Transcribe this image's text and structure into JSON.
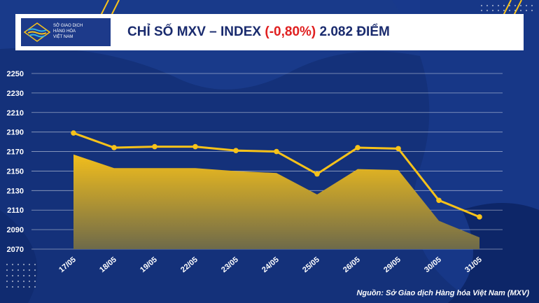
{
  "header": {
    "logo_text": "SỞ GIAO DỊCH\nHÀNG HÓA\nVIỆT NAM",
    "title_prefix": "CHỈ SỐ MXV – INDEX ",
    "title_change": "(-0,80%)",
    "title_suffix": " 2.082 ĐIỂM"
  },
  "source": "Nguồn: Sở Giao dịch Hàng hóa Việt Nam (MXV)",
  "colors": {
    "background": "#14317a",
    "line": "#f7c21a",
    "area_top": "#f2be1c",
    "area_bottom": "#6e6a4a",
    "accent_red": "#e02020",
    "title": "#1a2b6e"
  },
  "chart_data": {
    "type": "line",
    "categories": [
      "17/05",
      "18/05",
      "19/05",
      "22/05",
      "23/05",
      "24/05",
      "25/05",
      "26/05",
      "29/05",
      "30/05",
      "31/05"
    ],
    "series": [
      {
        "values": [
          2189,
          2174,
          2175,
          2175,
          2171,
          2170,
          2147,
          2174,
          2173,
          2120,
          2103
        ]
      },
      {
        "values": [
          2167,
          2153,
          2153,
          2153,
          2150,
          2148,
          2126,
          2152,
          2151,
          2099,
          2082
        ]
      }
    ],
    "yticks": [
      2070,
      2090,
      2110,
      2130,
      2150,
      2170,
      2190,
      2210,
      2230,
      2250
    ],
    "ylim": [
      2070,
      2250
    ],
    "grid": true
  }
}
